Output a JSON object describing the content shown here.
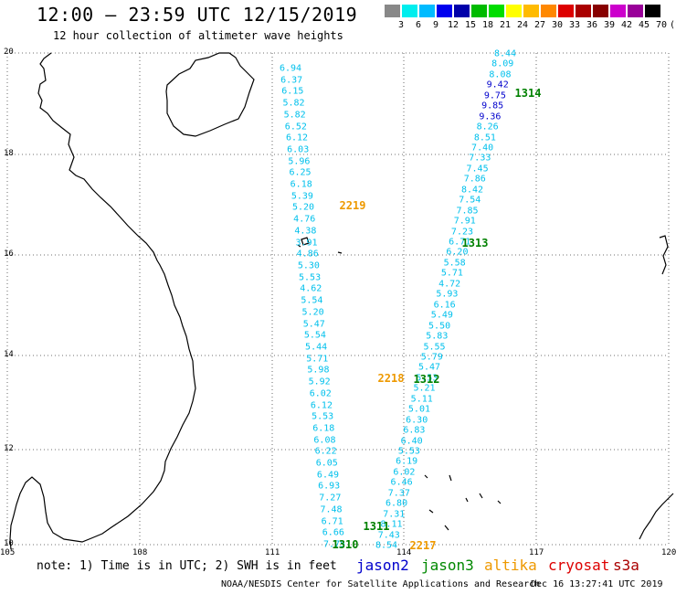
{
  "title": "12:00 – 23:59 UTC 12/15/2019",
  "subtitle": "12 hour collection of altimeter wave heights",
  "colorbar": {
    "colors": [
      "#888888",
      "#00eeee",
      "#00bbff",
      "#0000ee",
      "#0000aa",
      "#00bb00",
      "#00dd00",
      "#ffff00",
      "#ffbb00",
      "#ff8800",
      "#dd0000",
      "#aa0000",
      "#880000",
      "#cc00cc",
      "#990099",
      "#000000"
    ],
    "labels": [
      "3",
      "6",
      "9",
      "12",
      "15",
      "18",
      "21",
      "24",
      "27",
      "30",
      "33",
      "36",
      "39",
      "42",
      "45",
      "70",
      "(ft)"
    ]
  },
  "axes": {
    "lat_labels": [
      "20",
      "18",
      "16",
      "14",
      "12",
      "10"
    ],
    "lon_labels": [
      "105",
      "108",
      "111",
      "114",
      "117",
      "120"
    ]
  },
  "colors": {
    "cyan": "#00c0ec",
    "blue": "#0000cc",
    "green": "#008000",
    "orange": "#ee9900",
    "red": "#dd0000"
  },
  "tracks": {
    "track_1314_1313_1312_1311": {
      "color_class": "cyan",
      "values": [
        "8.44",
        "8.09",
        "8.08",
        "9.42",
        "9.75",
        "9.85",
        "9.36",
        "8.26",
        "8.51",
        "7.40",
        "7.33",
        "7.45",
        "7.86",
        "8.42",
        "7.54",
        "7.85",
        "7.91",
        "7.23",
        "6.71",
        "6.20",
        "5.58",
        "5.71",
        "4.72",
        "5.93",
        "6.16",
        "5.49",
        "5.50",
        "5.83",
        "5.55",
        "5.79",
        "5.47",
        "5.53",
        "5.21",
        "5.11",
        "5.01",
        "6.30",
        "6.83",
        "6.40",
        "5.53",
        "6.19",
        "6.02",
        "6.46",
        "7.37",
        "6.80",
        "7.31",
        "8.11",
        "7.43",
        "8.54"
      ],
      "blue_indices": [
        3,
        4,
        5,
        6
      ]
    },
    "track_2219_2218_1310": {
      "color_class": "cyan",
      "values": [
        "6.94",
        "6.37",
        "6.15",
        "5.82",
        "5.82",
        "6.52",
        "6.12",
        "6.03",
        "5.96",
        "6.25",
        "6.18",
        "5.39",
        "5.20",
        "4.76",
        "4.38",
        "3.91",
        "4.86",
        "5.30",
        "5.53",
        "4.62",
        "5.54",
        "5.20",
        "5.47",
        "5.54",
        "5.44",
        "5.71",
        "5.98",
        "5.92",
        "6.02",
        "6.12",
        "5.53",
        "6.18",
        "6.08",
        "6.22",
        "6.05",
        "6.49",
        "6.93",
        "7.27",
        "7.48",
        "6.71",
        "6.66",
        "7.75"
      ]
    }
  },
  "pass_labels": [
    {
      "text": "1314",
      "color": "green"
    },
    {
      "text": "2219",
      "color": "orange"
    },
    {
      "text": "1313",
      "color": "green"
    },
    {
      "text": "2218",
      "color": "orange"
    },
    {
      "text": "1312",
      "color": "green"
    },
    {
      "text": "1311",
      "color": "green"
    },
    {
      "text": "1310",
      "color": "green"
    },
    {
      "text": "2217",
      "color": "orange"
    }
  ],
  "note": "note: 1) Time is in UTC; 2) SWH is in feet",
  "satellites": [
    {
      "name": "jason2",
      "color": "#0000cc"
    },
    {
      "name": "jason3",
      "color": "#008800"
    },
    {
      "name": "altika",
      "color": "#ee9900"
    },
    {
      "name": "cryosat",
      "color": "#dd0000"
    },
    {
      "name": "s3a",
      "color": "#aa0000"
    }
  ],
  "footer": "NOAA/NESDIS Center for Satellite Applications and Research",
  "timestamp": "Dec 16 13:27:41 UTC 2019"
}
